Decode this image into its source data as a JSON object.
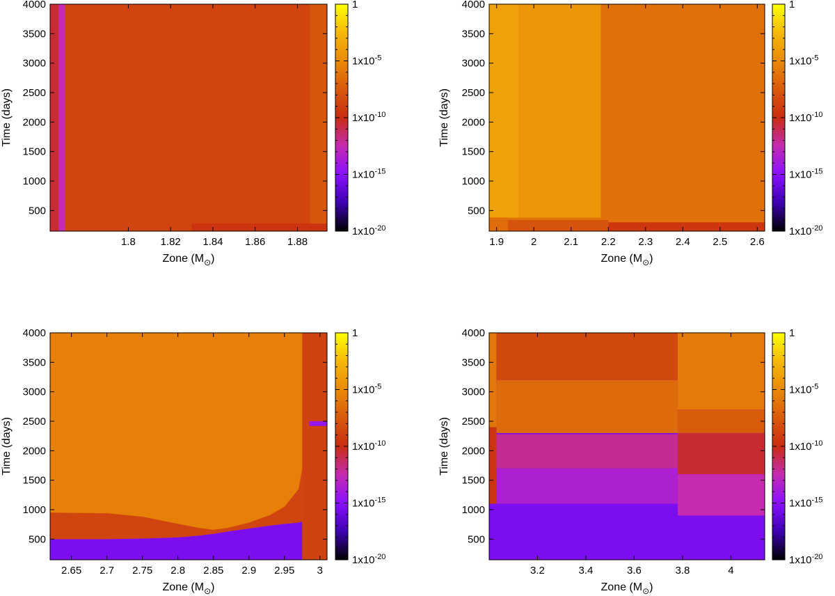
{
  "colorbar": {
    "tick_labels": [
      {
        "base": "1",
        "exp": ""
      },
      {
        "base": "1x10",
        "exp": "-5"
      },
      {
        "base": "1x10",
        "exp": "-10"
      },
      {
        "base": "1x10",
        "exp": "-15"
      },
      {
        "base": "1x10",
        "exp": "-20"
      }
    ],
    "range_log10": [
      -20,
      0
    ],
    "palette": [
      "#000000",
      "#3d00b0",
      "#8a10ff",
      "#c42bb0",
      "#c82c12",
      "#d85a0c",
      "#e98a08",
      "#f5b90a",
      "#ffff00"
    ]
  },
  "chart_data": [
    {
      "type": "heatmap",
      "xlabel": {
        "text": "Zone (M",
        "sub": "⊙",
        "close": ")"
      },
      "ylabel": "Time (days)",
      "xlim": [
        1.763,
        1.894
      ],
      "ylim": [
        150,
        4000
      ],
      "xticks": [
        1.8,
        1.82,
        1.84,
        1.86,
        1.88
      ],
      "xtick_labels": [
        "1.8",
        "1.82",
        "1.84",
        "1.86",
        "1.88"
      ],
      "yticks": [
        500,
        1000,
        1500,
        2000,
        2500,
        3000,
        3500,
        4000
      ],
      "ytick_labels": [
        "500",
        "1000",
        "1500",
        "2000",
        "2500",
        "3000",
        "3500",
        "4000"
      ],
      "background_log10": -8.7,
      "regions": [
        {
          "x": [
            1.763,
            1.767
          ],
          "y": [
            150,
            4000
          ],
          "log10_value": -10.5
        },
        {
          "x": [
            1.767,
            1.77
          ],
          "y": [
            150,
            4000
          ],
          "log10_value": -12.5
        },
        {
          "x": [
            1.83,
            1.894
          ],
          "y": [
            150,
            280
          ],
          "log10_value": -9.6
        },
        {
          "x": [
            1.886,
            1.894
          ],
          "y": [
            280,
            4000
          ],
          "log10_value": -7.6
        }
      ]
    },
    {
      "type": "heatmap",
      "xlabel": {
        "text": "Zone (M",
        "sub": "⊙",
        "close": ")"
      },
      "ylabel": "Time (days)",
      "xlim": [
        1.88,
        2.62
      ],
      "ylim": [
        150,
        4000
      ],
      "xticks": [
        1.9,
        2,
        2.1,
        2.2,
        2.3,
        2.4,
        2.5,
        2.6
      ],
      "xtick_labels": [
        "1.9",
        "2",
        "2.1",
        "2.2",
        "2.3",
        "2.4",
        "2.5",
        "2.6"
      ],
      "yticks": [
        500,
        1000,
        1500,
        2000,
        2500,
        3000,
        3500,
        4000
      ],
      "ytick_labels": [
        "500",
        "1000",
        "1500",
        "2000",
        "2500",
        "3000",
        "3500",
        "4000"
      ],
      "background_log10": -6.2,
      "regions": [
        {
          "x": [
            1.88,
            1.96
          ],
          "y": [
            380,
            4000
          ],
          "log10_value": -3.8
        },
        {
          "x": [
            1.96,
            2.18
          ],
          "y": [
            380,
            4000
          ],
          "log10_value": -4.4
        },
        {
          "x": [
            2.18,
            2.62
          ],
          "y": [
            330,
            4000
          ],
          "log10_value": -6.3
        },
        {
          "x": [
            1.93,
            2.2
          ],
          "y": [
            150,
            340
          ],
          "log10_value": -7.8
        },
        {
          "x": [
            2.2,
            2.62
          ],
          "y": [
            150,
            300
          ],
          "log10_value": -9.4
        },
        {
          "x": [
            1.88,
            1.93
          ],
          "y": [
            150,
            380
          ],
          "log10_value": -6.5
        }
      ]
    },
    {
      "type": "heatmap",
      "xlabel": {
        "text": "Zone (M",
        "sub": "⊙",
        "close": ")"
      },
      "ylabel": "Time (days)",
      "xlim": [
        2.62,
        3.01
      ],
      "ylim": [
        150,
        4000
      ],
      "xticks": [
        2.65,
        2.7,
        2.75,
        2.8,
        2.85,
        2.9,
        2.95,
        3
      ],
      "xtick_labels": [
        "2.65",
        "2.7",
        "2.75",
        "2.8",
        "2.85",
        "2.9",
        "2.95",
        "3"
      ],
      "yticks": [
        500,
        1000,
        1500,
        2000,
        2500,
        3000,
        3500,
        4000
      ],
      "ytick_labels": [
        "500",
        "1000",
        "1500",
        "2000",
        "2500",
        "3000",
        "3500",
        "4000"
      ],
      "background_log10": -5.5,
      "regions": [
        {
          "x": [
            2.975,
            3.01
          ],
          "y": [
            150,
            4000
          ],
          "log10_value": -8.8
        },
        {
          "x": [
            2.985,
            3.01
          ],
          "y": [
            2420,
            2500
          ],
          "log10_value": -14.5
        }
      ],
      "boundary": {
        "x": [
          2.62,
          2.7,
          2.75,
          2.8,
          2.83,
          2.85,
          2.87,
          2.9,
          2.93,
          2.95,
          2.97,
          2.975
        ],
        "upper_y": [
          950,
          940,
          880,
          760,
          690,
          660,
          690,
          780,
          910,
          1050,
          1350,
          1700
        ],
        "lower_y": [
          500,
          500,
          510,
          530,
          560,
          590,
          630,
          680,
          730,
          760,
          780,
          800
        ],
        "above_log10": -5.5,
        "band_log10": -8.7,
        "below_log10": -15.5
      }
    },
    {
      "type": "heatmap",
      "xlabel": {
        "text": "Zone (M",
        "sub": "⊙",
        "close": ")"
      },
      "ylabel": "Time (days)",
      "xlim": [
        3.0,
        4.14
      ],
      "ylim": [
        150,
        4000
      ],
      "xticks": [
        3.2,
        3.4,
        3.6,
        3.8,
        4
      ],
      "xtick_labels": [
        "3.2",
        "3.4",
        "3.6",
        "3.8",
        "4"
      ],
      "yticks": [
        500,
        1000,
        1500,
        2000,
        2500,
        3000,
        3500,
        4000
      ],
      "ytick_labels": [
        "500",
        "1000",
        "1500",
        "2000",
        "2500",
        "3000",
        "3500",
        "4000"
      ],
      "background_log10": -15.5,
      "regions": [
        {
          "x": [
            3.0,
            3.03
          ],
          "y": [
            1100,
            2400
          ],
          "log10_value": -9.5
        },
        {
          "x": [
            3.0,
            3.03
          ],
          "y": [
            2400,
            4000
          ],
          "log10_value": -6.0
        },
        {
          "x": [
            3.03,
            3.78
          ],
          "y": [
            3200,
            4000
          ],
          "log10_value": -8.4
        },
        {
          "x": [
            3.03,
            3.78
          ],
          "y": [
            2300,
            3200
          ],
          "log10_value": -6.6
        },
        {
          "x": [
            3.03,
            3.78
          ],
          "y": [
            1700,
            2280
          ],
          "log10_value": -12.0
        },
        {
          "x": [
            3.03,
            3.78
          ],
          "y": [
            1100,
            1700
          ],
          "log10_value": -13.5
        },
        {
          "x": [
            3.78,
            4.14
          ],
          "y": [
            2700,
            4000
          ],
          "log10_value": -5.8
        },
        {
          "x": [
            3.78,
            4.14
          ],
          "y": [
            2300,
            2700
          ],
          "log10_value": -7.4
        },
        {
          "x": [
            3.78,
            4.14
          ],
          "y": [
            1600,
            2300
          ],
          "log10_value": -10.5
        },
        {
          "x": [
            3.78,
            4.14
          ],
          "y": [
            900,
            1600
          ],
          "log10_value": -12.5
        }
      ]
    }
  ]
}
